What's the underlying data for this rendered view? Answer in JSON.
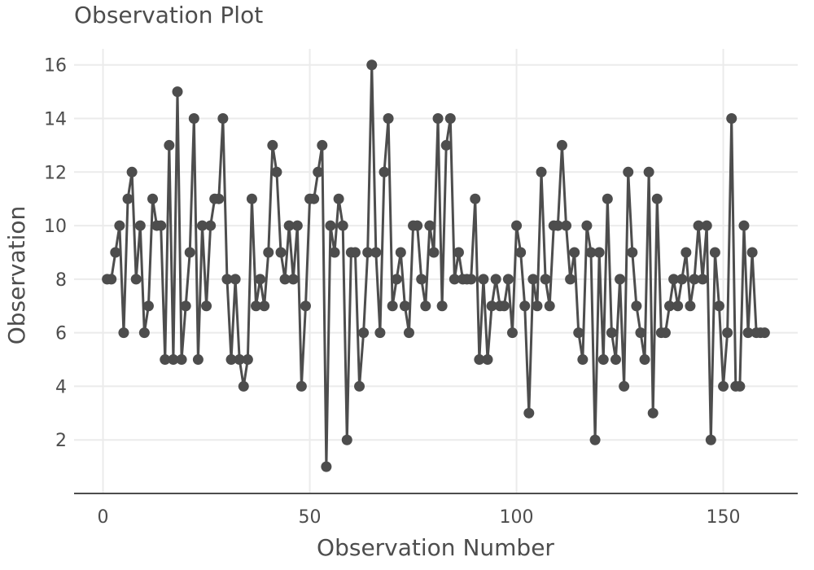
{
  "chart_data": {
    "type": "line",
    "title": "Observation Plot",
    "xlabel": "Observation Number",
    "ylabel": "Observation",
    "xlim": [
      -7,
      168
    ],
    "ylim": [
      0,
      16.6
    ],
    "xticks": [
      0,
      50,
      100,
      150
    ],
    "yticks": [
      2,
      4,
      6,
      8,
      10,
      12,
      14,
      16
    ],
    "grid": true,
    "series_color": "#4d4d4d",
    "grid_color": "#ebebeb",
    "x": [
      1,
      2,
      3,
      4,
      5,
      6,
      7,
      8,
      9,
      10,
      11,
      12,
      13,
      14,
      15,
      16,
      17,
      18,
      19,
      20,
      21,
      22,
      23,
      24,
      25,
      26,
      27,
      28,
      29,
      30,
      31,
      32,
      33,
      34,
      35,
      36,
      37,
      38,
      39,
      40,
      41,
      42,
      43,
      44,
      45,
      46,
      47,
      48,
      49,
      50,
      51,
      52,
      53,
      54,
      55,
      56,
      57,
      58,
      59,
      60,
      61,
      62,
      63,
      64,
      65,
      66,
      67,
      68,
      69,
      70,
      71,
      72,
      73,
      74,
      75,
      76,
      77,
      78,
      79,
      80,
      81,
      82,
      83,
      84,
      85,
      86,
      87,
      88,
      89,
      90,
      91,
      92,
      93,
      94,
      95,
      96,
      97,
      98,
      99,
      100,
      101,
      102,
      103,
      104,
      105,
      106,
      107,
      108,
      109,
      110,
      111,
      112,
      113,
      114,
      115,
      116,
      117,
      118,
      119,
      120,
      121,
      122,
      123,
      124,
      125,
      126,
      127,
      128,
      129,
      130,
      131,
      132,
      133,
      134,
      135,
      136,
      137,
      138,
      139,
      140,
      141,
      142,
      143,
      144,
      145,
      146,
      147,
      148,
      149,
      150,
      151,
      152,
      153,
      154,
      155,
      156,
      157,
      158,
      159,
      160
    ],
    "values": [
      8,
      8,
      9,
      10,
      6,
      11,
      12,
      8,
      10,
      6,
      7,
      11,
      10,
      10,
      5,
      13,
      5,
      15,
      5,
      7,
      9,
      14,
      5,
      10,
      7,
      10,
      11,
      11,
      14,
      8,
      5,
      8,
      5,
      4,
      5,
      11,
      7,
      8,
      7,
      9,
      13,
      12,
      9,
      8,
      10,
      8,
      10,
      4,
      7,
      11,
      11,
      12,
      13,
      1,
      10,
      9,
      11,
      10,
      2,
      9,
      9,
      4,
      6,
      9,
      16,
      9,
      6,
      12,
      14,
      7,
      8,
      9,
      7,
      6,
      10,
      10,
      8,
      7,
      10,
      9,
      14,
      7,
      13,
      14,
      8,
      9,
      8,
      8,
      8,
      11,
      5,
      8,
      5,
      7,
      8,
      7,
      7,
      8,
      6,
      10,
      9,
      7,
      3,
      8,
      7,
      12,
      8,
      7,
      10,
      10,
      13,
      10,
      8,
      9,
      6,
      5,
      10,
      9,
      2,
      9,
      5,
      11,
      6,
      5,
      8,
      4,
      12,
      9,
      7,
      6,
      5,
      12,
      3,
      11,
      6,
      6,
      7,
      8,
      7,
      8,
      9,
      7,
      8,
      10,
      8,
      10,
      2,
      9,
      7,
      4,
      6,
      14,
      4,
      4,
      10,
      6,
      9,
      6,
      6,
      6
    ]
  }
}
